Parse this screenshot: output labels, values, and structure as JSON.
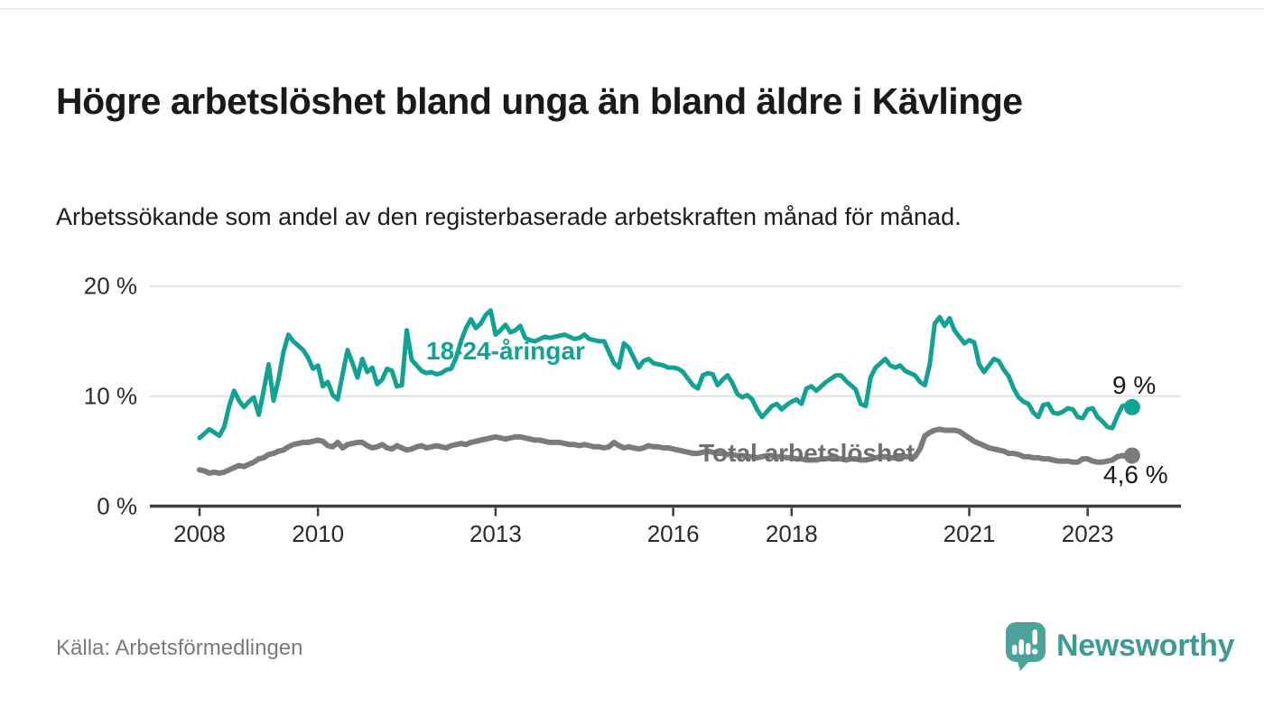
{
  "header": {
    "title": "Högre arbetslöshet bland unga än bland äldre i Kävlinge",
    "subtitle": "Arbetssökande som andel av den registerbaserade arbetskraften månad för månad."
  },
  "footer": {
    "source": "Källa: Arbetsförmedlingen",
    "brand": "Newsworthy",
    "brand_color": "#3f9a93",
    "logo_icon": "speech-bubble-bar-chart"
  },
  "chart_data": {
    "type": "line",
    "unit": "%",
    "frequency": "monthly",
    "start": "2008-01",
    "end": "2023-10",
    "ylim": [
      0,
      20
    ],
    "grid": "horizontal-only",
    "y_ticks": [
      {
        "value": 0,
        "label": "0 %"
      },
      {
        "value": 10,
        "label": "10 %"
      },
      {
        "value": 20,
        "label": "20 %"
      }
    ],
    "x_ticks": [
      {
        "label": "2008",
        "month_index": 0
      },
      {
        "label": "2010",
        "month_index": 24
      },
      {
        "label": "2013",
        "month_index": 60
      },
      {
        "label": "2016",
        "month_index": 96
      },
      {
        "label": "2018",
        "month_index": 120
      },
      {
        "label": "2021",
        "month_index": 156
      },
      {
        "label": "2023",
        "month_index": 180
      }
    ],
    "series": [
      {
        "name": "18-24-åringar",
        "color": "#12A294",
        "stroke_width": 5,
        "end_label": "9 %",
        "end_value": 9.0,
        "values": [
          6.2,
          6.6,
          7.0,
          6.7,
          6.4,
          7.2,
          9.1,
          10.5,
          9.6,
          9.0,
          9.5,
          9.9,
          8.3,
          10.5,
          12.9,
          9.6,
          11.5,
          14.0,
          15.6,
          15.0,
          14.6,
          14.2,
          13.5,
          12.5,
          12.8,
          10.9,
          11.3,
          10.1,
          9.7,
          12.0,
          14.2,
          13.0,
          11.7,
          13.4,
          12.2,
          12.6,
          11.1,
          11.5,
          12.5,
          12.3,
          10.9,
          11.0,
          16.0,
          13.3,
          12.8,
          12.3,
          12.1,
          12.2,
          12.0,
          12.1,
          12.4,
          12.5,
          13.5,
          15.0,
          16.2,
          17.0,
          16.2,
          16.6,
          17.4,
          17.8,
          15.6,
          16.0,
          16.5,
          15.8,
          16.0,
          16.4,
          15.3,
          15.1,
          15.0,
          15.2,
          15.4,
          15.3,
          15.4,
          15.5,
          15.6,
          15.4,
          15.2,
          15.3,
          15.6,
          15.2,
          15.1,
          15.0,
          15.0,
          14.0,
          13.0,
          12.6,
          14.8,
          14.4,
          13.5,
          12.6,
          13.2,
          13.4,
          13.0,
          12.9,
          12.8,
          12.6,
          12.6,
          12.5,
          12.2,
          11.6,
          11.0,
          10.7,
          11.9,
          12.1,
          12.0,
          11.0,
          11.5,
          11.9,
          11.2,
          10.2,
          9.9,
          10.1,
          9.7,
          8.8,
          8.1,
          8.6,
          9.1,
          9.3,
          8.8,
          9.2,
          9.5,
          9.7,
          9.3,
          10.7,
          10.9,
          10.5,
          10.9,
          11.3,
          11.6,
          11.9,
          11.9,
          11.4,
          11.0,
          10.6,
          9.3,
          9.1,
          11.7,
          12.6,
          13.0,
          13.4,
          12.8,
          12.6,
          12.8,
          12.3,
          12.1,
          11.9,
          11.3,
          11.0,
          12.9,
          16.6,
          17.2,
          16.4,
          17.1,
          16.0,
          15.4,
          14.8,
          15.1,
          14.9,
          12.9,
          12.2,
          12.8,
          13.4,
          13.2,
          12.4,
          11.8,
          10.7,
          9.9,
          9.5,
          9.3,
          8.5,
          8.1,
          9.2,
          9.3,
          8.5,
          8.4,
          8.6,
          8.9,
          8.8,
          8.1,
          8.0,
          8.8,
          8.9,
          8.1,
          7.7,
          7.2,
          7.1,
          8.2,
          9.1,
          9.2,
          9.0
        ]
      },
      {
        "name": "Total arbetslöshet",
        "color": "#7b7b7b",
        "stroke_width": 6,
        "end_label": "4,6 %",
        "end_value": 4.6,
        "values": [
          3.3,
          3.2,
          3.0,
          3.1,
          3.0,
          3.1,
          3.3,
          3.5,
          3.7,
          3.6,
          3.8,
          4.0,
          4.3,
          4.4,
          4.7,
          4.8,
          5.0,
          5.1,
          5.4,
          5.6,
          5.7,
          5.8,
          5.8,
          5.9,
          6.0,
          5.9,
          5.5,
          5.4,
          5.8,
          5.3,
          5.6,
          5.7,
          5.8,
          5.8,
          5.5,
          5.3,
          5.4,
          5.6,
          5.3,
          5.2,
          5.5,
          5.3,
          5.1,
          5.2,
          5.4,
          5.5,
          5.3,
          5.4,
          5.5,
          5.4,
          5.3,
          5.5,
          5.6,
          5.7,
          5.6,
          5.8,
          5.9,
          6.0,
          6.1,
          6.2,
          6.3,
          6.2,
          6.1,
          6.2,
          6.3,
          6.3,
          6.2,
          6.1,
          6.0,
          6.0,
          5.9,
          5.8,
          5.8,
          5.8,
          5.7,
          5.6,
          5.6,
          5.5,
          5.6,
          5.5,
          5.4,
          5.4,
          5.3,
          5.4,
          5.8,
          5.5,
          5.3,
          5.4,
          5.3,
          5.2,
          5.3,
          5.5,
          5.4,
          5.4,
          5.3,
          5.3,
          5.2,
          5.1,
          5.0,
          4.9,
          4.8,
          4.8,
          4.9,
          5.0,
          4.9,
          4.8,
          4.8,
          4.7,
          4.7,
          4.6,
          4.6,
          4.5,
          4.5,
          4.4,
          4.5,
          4.6,
          4.6,
          4.5,
          4.5,
          4.4,
          4.4,
          4.3,
          4.3,
          4.2,
          4.2,
          4.2,
          4.3,
          4.3,
          4.4,
          4.3,
          4.3,
          4.2,
          4.3,
          4.3,
          4.2,
          4.2,
          4.3,
          4.4,
          4.5,
          4.5,
          4.4,
          4.4,
          4.5,
          4.5,
          4.5,
          4.5,
          5.2,
          6.4,
          6.7,
          6.9,
          7.0,
          6.9,
          6.9,
          6.9,
          6.8,
          6.5,
          6.2,
          5.9,
          5.7,
          5.5,
          5.3,
          5.2,
          5.1,
          5.0,
          4.8,
          4.8,
          4.7,
          4.5,
          4.5,
          4.4,
          4.4,
          4.3,
          4.3,
          4.2,
          4.1,
          4.1,
          4.1,
          4.0,
          4.0,
          4.3,
          4.3,
          4.1,
          4.0,
          4.0,
          4.1,
          4.2,
          4.5,
          4.6,
          4.5,
          4.6
        ]
      }
    ],
    "style": {
      "gridline_color": "#e3e3e3",
      "axis_color": "#3d3d3d",
      "label_color": "#2b2b2b"
    }
  }
}
